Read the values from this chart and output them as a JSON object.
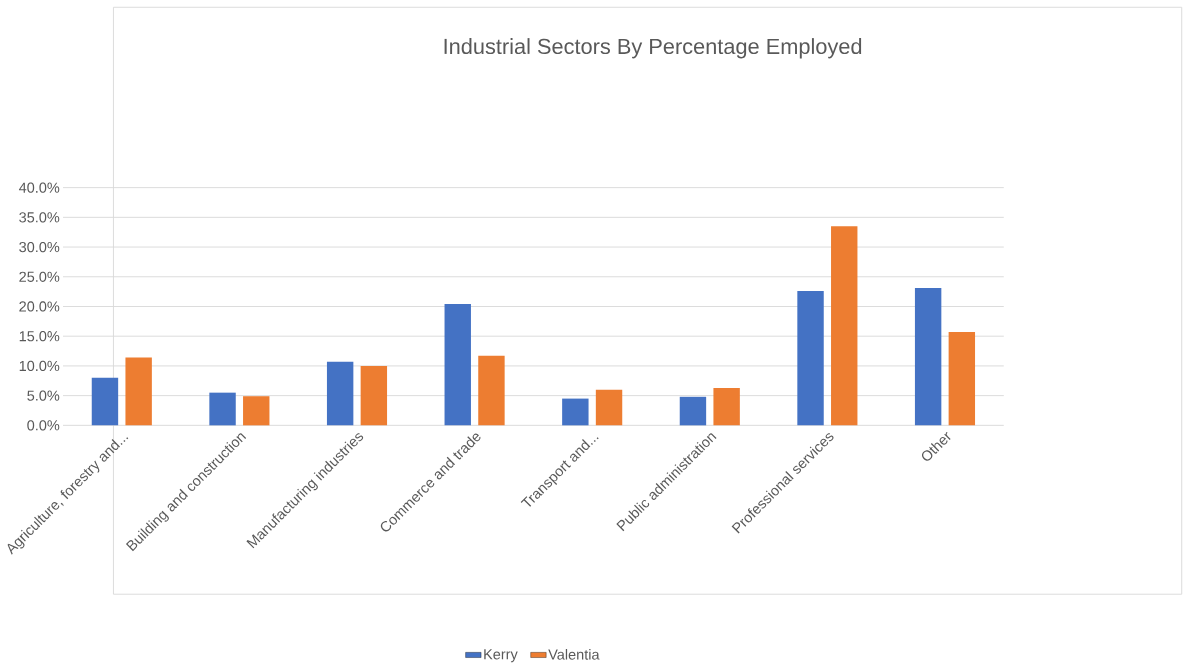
{
  "chart_data": {
    "type": "bar",
    "title": "Industrial Sectors By Percentage Employed",
    "categories": [
      "Agriculture, forestry and...",
      "Building and construction",
      "Manufacturing industries",
      "Commerce and trade",
      "Transport and...",
      "Public administration",
      "Professional services",
      "Other"
    ],
    "series": [
      {
        "name": "Kerry",
        "color": "#4472c4",
        "values": [
          8.0,
          5.5,
          10.7,
          20.4,
          4.5,
          4.8,
          22.6,
          23.1
        ]
      },
      {
        "name": "Valentia",
        "color": "#ed7d31",
        "values": [
          11.4,
          4.9,
          10.0,
          11.7,
          6.0,
          6.3,
          33.5,
          15.7
        ]
      }
    ],
    "ylim": [
      0,
      40
    ],
    "yticks": [
      {
        "value": 0,
        "label": "0.0%"
      },
      {
        "value": 5,
        "label": "5.0%"
      },
      {
        "value": 10,
        "label": "10.0%"
      },
      {
        "value": 15,
        "label": "15.0%"
      },
      {
        "value": 20,
        "label": "20.0%"
      },
      {
        "value": 25,
        "label": "25.0%"
      },
      {
        "value": 30,
        "label": "30.0%"
      },
      {
        "value": 35,
        "label": "35.0%"
      },
      {
        "value": 40,
        "label": "40.0%"
      }
    ],
    "grid": "y",
    "legend": "bottom"
  }
}
